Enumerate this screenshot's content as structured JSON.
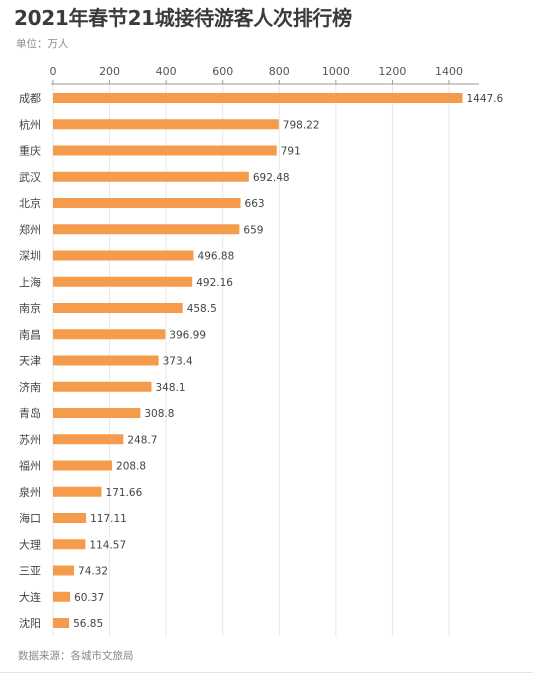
{
  "title": "2021年春节21城接待游客人次排行榜",
  "unit_note": "单位：万人",
  "source_note": "数据来源：各城市文旅局",
  "colors": {
    "bar": "#f59b4c",
    "gridline": "#e6e6e6",
    "axis": "#9a9a9a"
  },
  "chart_data": {
    "type": "bar",
    "orientation": "horizontal",
    "title": "2021年春节21城接待游客人次排行榜",
    "xlabel": "",
    "ylabel": "",
    "xlim": [
      0,
      1400
    ],
    "xticks": [
      0,
      200,
      400,
      600,
      800,
      1000,
      1200,
      1400
    ],
    "x_axis_position": "top",
    "grid": "vertical gridlines",
    "legend": "none",
    "categories": [
      "成都",
      "杭州",
      "重庆",
      "武汉",
      "北京",
      "郑州",
      "深圳",
      "上海",
      "南京",
      "南昌",
      "天津",
      "济南",
      "青岛",
      "苏州",
      "福州",
      "泉州",
      "海口",
      "大理",
      "三亚",
      "大连",
      "沈阳"
    ],
    "values": [
      1447.6,
      798.22,
      791,
      692.48,
      663,
      659,
      496.88,
      492.16,
      458.5,
      396.99,
      373.4,
      348.1,
      308.8,
      248.7,
      208.8,
      171.66,
      117.11,
      114.57,
      74.32,
      60.37,
      56.85
    ],
    "value_labels": [
      "1447.6",
      "798.22",
      "791",
      "692.48",
      "663",
      "659",
      "496.88",
      "492.16",
      "458.5",
      "396.99",
      "373.4",
      "348.1",
      "308.8",
      "248.7",
      "208.8",
      "171.66",
      "117.11",
      "114.57",
      "74.32",
      "60.37",
      "56.85"
    ]
  }
}
